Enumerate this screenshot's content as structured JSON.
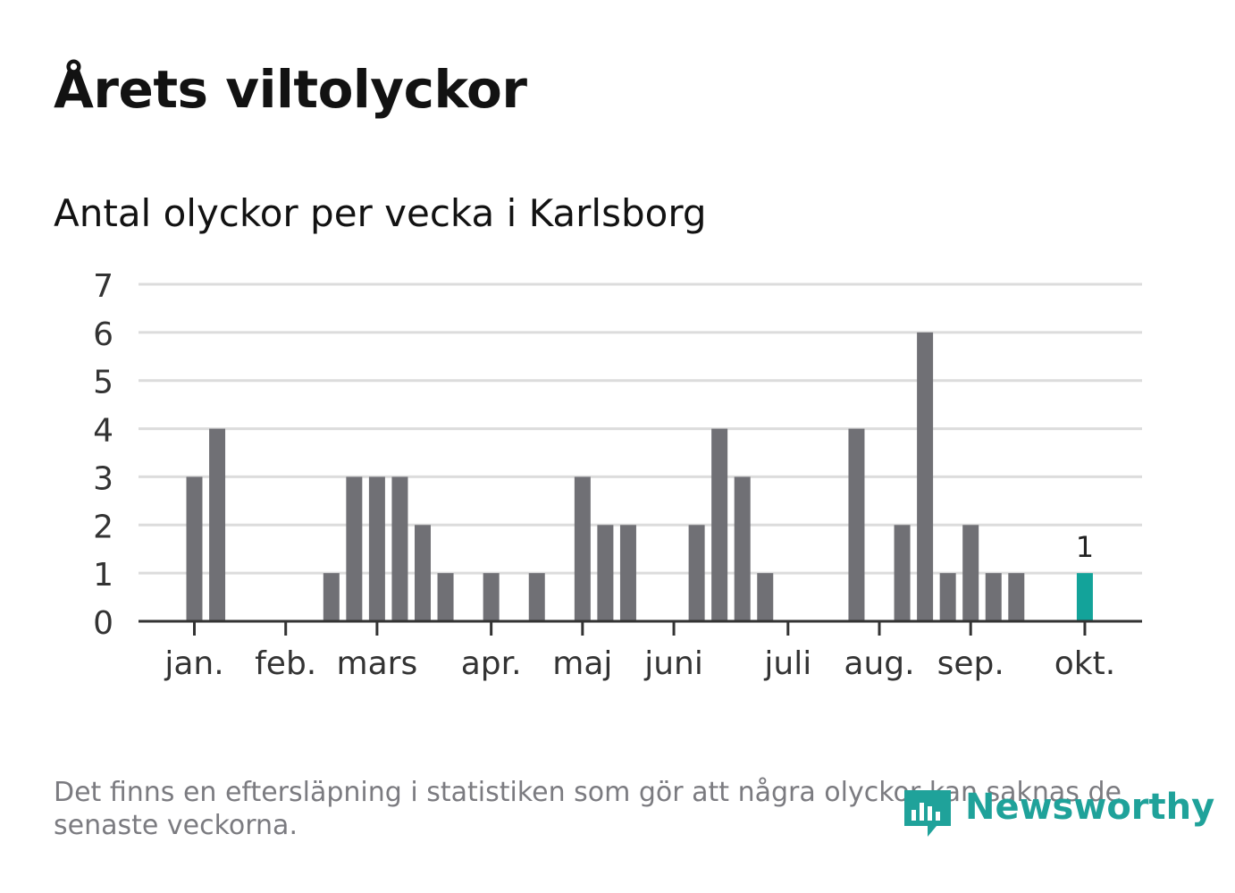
{
  "title": "Årets viltolyckor",
  "subtitle": "Antal olyckor per vecka i Karlsborg",
  "footnote": "Det finns en eftersläpning i statistiken som gör att några olyckor kan saknas de senaste veckorna.",
  "brand": {
    "name": "Newsworthy",
    "color": "#1fa29a"
  },
  "colors": {
    "bar": "#707075",
    "highlight": "#13a39a",
    "grid": "#dcdcdc",
    "axis": "#333333"
  },
  "chart_data": {
    "type": "bar",
    "title": "Antal olyckor per vecka i Karlsborg",
    "xlabel": "",
    "ylabel": "",
    "ylim": [
      0,
      7
    ],
    "yticks": [
      0,
      1,
      2,
      3,
      4,
      5,
      6,
      7
    ],
    "grid": true,
    "weeks": [
      1,
      2,
      3,
      4,
      5,
      6,
      7,
      8,
      9,
      10,
      11,
      12,
      13,
      14,
      15,
      16,
      17,
      18,
      19,
      20,
      21,
      22,
      23,
      24,
      25,
      26,
      27,
      28,
      29,
      30,
      31,
      32,
      33,
      34,
      35,
      36,
      37,
      38,
      39,
      40,
      41
    ],
    "values": [
      3,
      4,
      0,
      0,
      0,
      0,
      1,
      3,
      3,
      3,
      2,
      1,
      0,
      1,
      0,
      1,
      0,
      3,
      2,
      2,
      0,
      0,
      2,
      4,
      3,
      1,
      0,
      0,
      0,
      4,
      0,
      2,
      6,
      1,
      2,
      1,
      1,
      0,
      0,
      1,
      0
    ],
    "highlight_week": 40,
    "highlight_label": "1",
    "month_ticks": [
      {
        "label": "jan.",
        "week": 1
      },
      {
        "label": "feb.",
        "week": 5
      },
      {
        "label": "mars",
        "week": 9
      },
      {
        "label": "apr.",
        "week": 14
      },
      {
        "label": "maj",
        "week": 18
      },
      {
        "label": "juni",
        "week": 22
      },
      {
        "label": "juli",
        "week": 27
      },
      {
        "label": "aug.",
        "week": 31
      },
      {
        "label": "sep.",
        "week": 35
      },
      {
        "label": "okt.",
        "week": 40
      }
    ]
  }
}
